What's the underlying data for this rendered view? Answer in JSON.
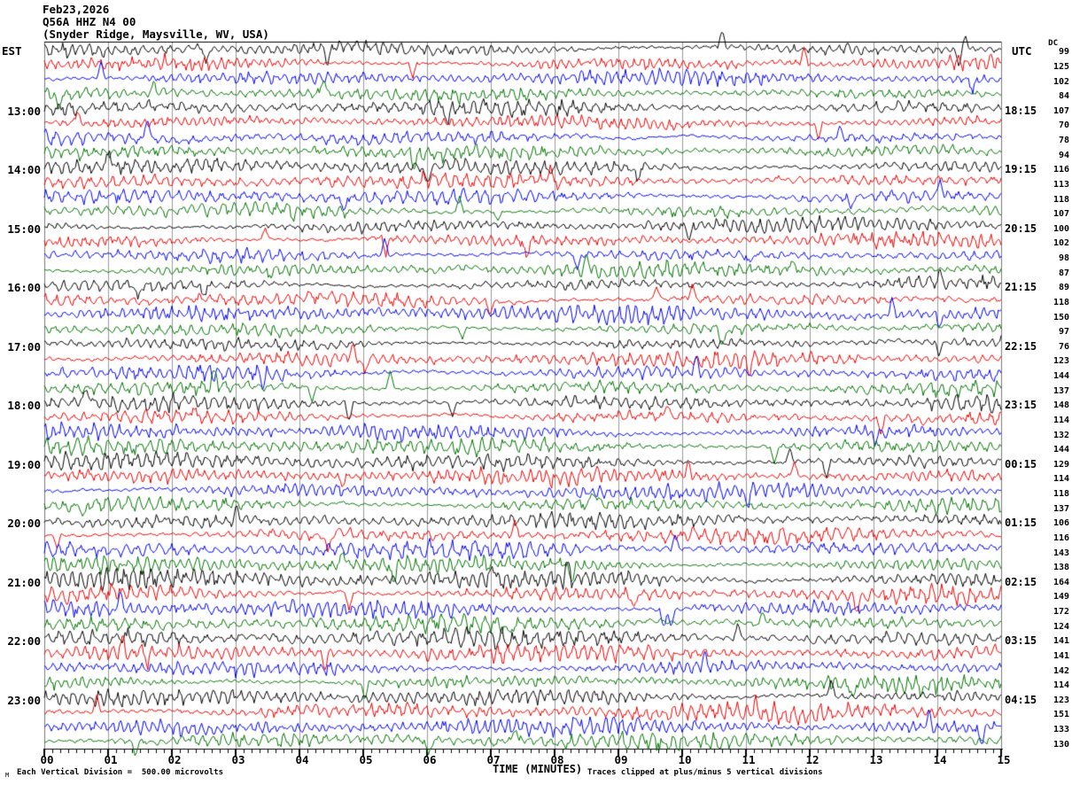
{
  "header": {
    "date": "Feb23,2026",
    "station": "Q56A HHZ N4 00",
    "location": "(Snyder Ridge, Maysville, WV, USA)"
  },
  "axes": {
    "left_timezone": "EST",
    "right_timezone": "UTC",
    "x_title": "TIME (MINUTES)",
    "x_tick_labels": [
      "00",
      "01",
      "02",
      "03",
      "04",
      "05",
      "06",
      "07",
      "08",
      "09",
      "10",
      "11",
      "12",
      "13",
      "14",
      "15"
    ]
  },
  "footer": {
    "scale_note": "Each Vertical Division =  500.00 microvolts",
    "clip_note": "Traces clipped at plus/minus 5 vertical divisions",
    "watermark": "M"
  },
  "chart_data": {
    "type": "line",
    "title": "Helicorder seismogram Q56A HHZ N4 00 - Feb23,2026",
    "x_range_minutes": [
      0,
      15
    ],
    "rows": 48,
    "minutes_per_row": 15,
    "first_row_start_est": "12:00",
    "grid": "vertical gridline each minute",
    "grid_color": "#989898",
    "trace_colors_cycle": [
      "#000000",
      "#e80000",
      "#0000e8",
      "#007200"
    ],
    "microvolts_per_division": 500,
    "clip_divisions": 5,
    "left_time_labels": [
      {
        "row": 4,
        "label": "13:00"
      },
      {
        "row": 8,
        "label": "14:00"
      },
      {
        "row": 12,
        "label": "15:00"
      },
      {
        "row": 16,
        "label": "16:00"
      },
      {
        "row": 20,
        "label": "17:00"
      },
      {
        "row": 24,
        "label": "18:00"
      },
      {
        "row": 28,
        "label": "19:00"
      },
      {
        "row": 32,
        "label": "20:00"
      },
      {
        "row": 36,
        "label": "21:00"
      },
      {
        "row": 40,
        "label": "22:00"
      },
      {
        "row": 44,
        "label": "23:00"
      }
    ],
    "right_time_labels": [
      {
        "row": 4,
        "label": "18:15"
      },
      {
        "row": 8,
        "label": "19:15"
      },
      {
        "row": 12,
        "label": "20:15"
      },
      {
        "row": 16,
        "label": "21:15"
      },
      {
        "row": 20,
        "label": "22:15"
      },
      {
        "row": 24,
        "label": "23:15"
      },
      {
        "row": 28,
        "label": "00:15"
      },
      {
        "row": 32,
        "label": "01:15"
      },
      {
        "row": 36,
        "label": "02:15"
      },
      {
        "row": 40,
        "label": "03:15"
      },
      {
        "row": 44,
        "label": "04:15"
      }
    ],
    "dc_column_header": "DC",
    "dc_offsets": [
      99,
      125,
      102,
      84,
      107,
      70,
      78,
      94,
      116,
      113,
      118,
      107,
      100,
      102,
      98,
      87,
      89,
      118,
      150,
      97,
      76,
      123,
      144,
      137,
      148,
      114,
      132,
      144,
      129,
      114,
      118,
      137,
      106,
      116,
      143,
      138,
      164,
      149,
      172,
      124,
      141,
      141,
      142,
      114,
      123,
      151,
      133,
      130
    ]
  }
}
